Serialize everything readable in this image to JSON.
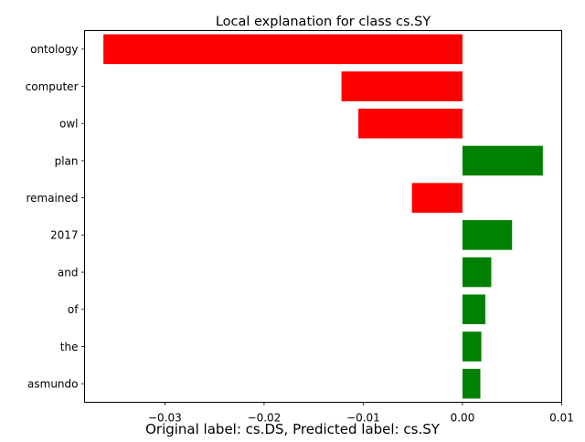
{
  "chart_data": {
    "type": "bar",
    "orientation": "horizontal",
    "title": "Local explanation for class cs.SY",
    "caption": "Original label: cs.DS, Predicted label: cs.SY",
    "categories": [
      "ontology",
      "computer",
      "owl",
      "plan",
      "remained",
      "2017",
      "and",
      "of",
      "the",
      "asmundo"
    ],
    "values": [
      -0.0362,
      -0.0122,
      -0.0105,
      0.0081,
      -0.0051,
      0.005,
      0.0029,
      0.0023,
      0.0019,
      0.0018
    ],
    "xlim": [
      -0.0381,
      0.01
    ],
    "xticks": [
      -0.03,
      -0.02,
      -0.01,
      0.0,
      0.01
    ],
    "xtick_labels": [
      "−0.03",
      "−0.02",
      "−0.01",
      "0.00",
      "0.01"
    ],
    "grid": false,
    "legend": "none",
    "colors": {
      "positive": "#008000",
      "negative": "#ff0000"
    }
  }
}
